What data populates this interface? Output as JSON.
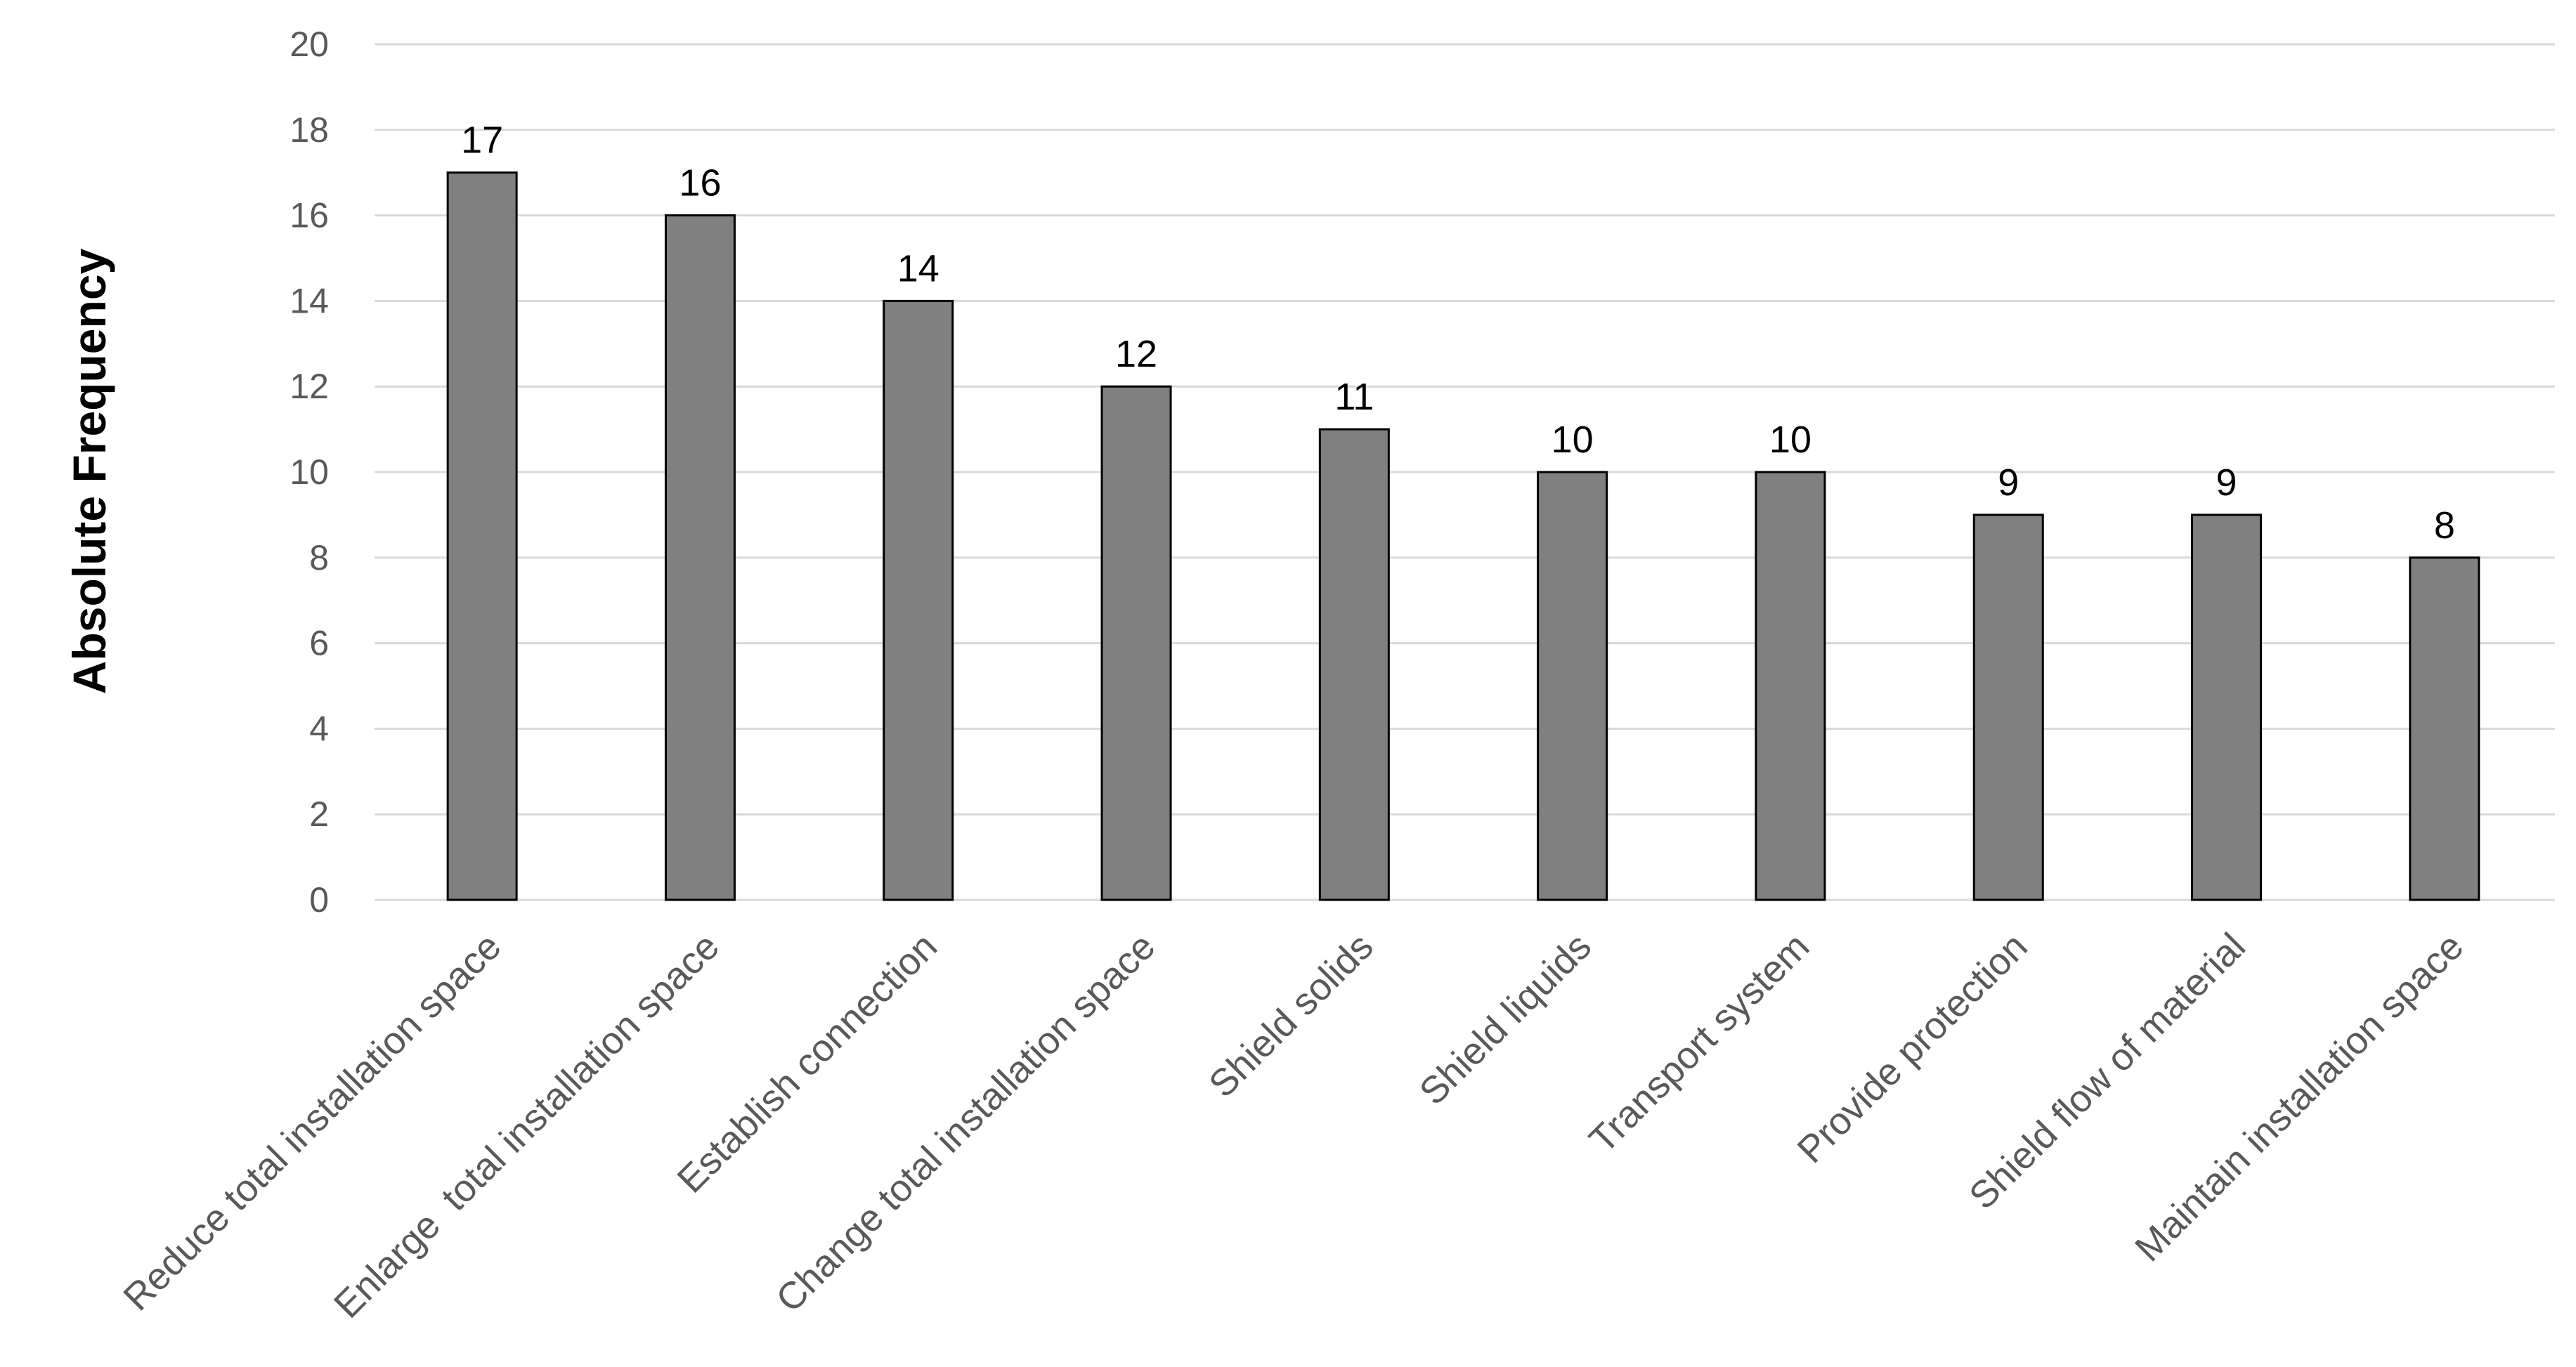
{
  "chart_data": {
    "type": "bar",
    "title": "",
    "xlabel": "",
    "ylabel": "Absolute Frequency",
    "ylim": [
      0,
      20
    ],
    "yticks": [
      0,
      2,
      4,
      6,
      8,
      10,
      12,
      14,
      16,
      18,
      20
    ],
    "grid": true,
    "legend": "none",
    "bar_color": "#808080",
    "bar_edge_color": "#000000",
    "categories": [
      "Reduce total installation space",
      "Enlarge  total installation space",
      "Establish connection",
      "Change total installation space",
      "Shield solids",
      "Shield liquids",
      "Transport system",
      "Provide protection",
      "Shield flow of material",
      "Maintain installation space"
    ],
    "values": [
      17,
      16,
      14,
      12,
      11,
      10,
      10,
      9,
      9,
      8
    ],
    "data_labels": [
      "17",
      "16",
      "14",
      "12",
      "11",
      "10",
      "10",
      "9",
      "9",
      "8"
    ]
  }
}
